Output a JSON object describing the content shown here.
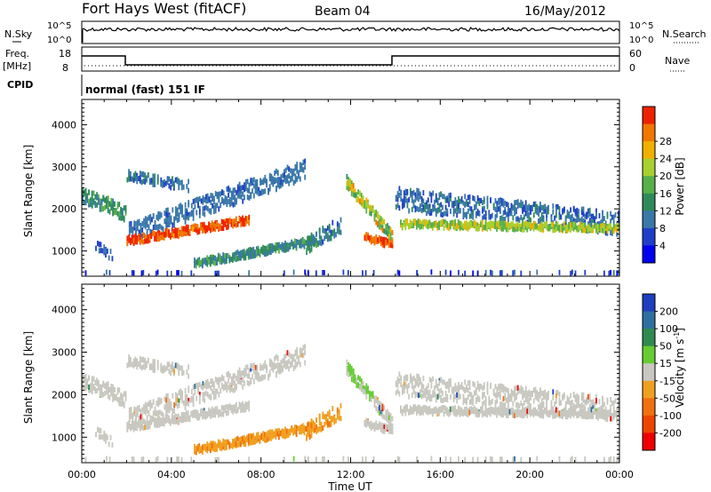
{
  "header": {
    "title": "Fort Hays West (fitACF)",
    "beam": "Beam 04",
    "date": "16/May/2012"
  },
  "top_panels": {
    "nsky_label": "N.Sky",
    "nsky_ticks": [
      "10^5",
      "10^0"
    ],
    "nsearch_label": "N.Search",
    "nsearch_ticks": [
      "10^5",
      "10^0"
    ],
    "freq_label_1": "Freq.",
    "freq_label_2": "[MHz]",
    "freq_ticks": [
      "18",
      "8"
    ],
    "nave_label": "Nave",
    "nave_ticks": [
      "60",
      "0"
    ],
    "cpid_label": "CPID",
    "cpid_text": "normal (fast) 151 IF"
  },
  "colors": {
    "power_scale": [
      "#0000ee",
      "#1f3fc8",
      "#3a78a8",
      "#2f8a5a",
      "#58b04a",
      "#a8d030",
      "#f0b000",
      "#f07800",
      "#ee2200"
    ],
    "velocity_scale": [
      "#1f3fbf",
      "#2f6fa0",
      "#2f8a50",
      "#66cc33",
      "#c8c8c0",
      "#f0a020",
      "#f07010",
      "#ee4400",
      "#ee0000"
    ]
  },
  "chart_data": [
    {
      "type": "heatmap",
      "name": "power",
      "xlabel": "",
      "ylabel": "Slant Range [km]",
      "xlim": [
        0,
        24
      ],
      "ylim": [
        400,
        4600
      ],
      "x_ticks": [
        "00:00",
        "04:00",
        "08:00",
        "12:00",
        "16:00",
        "20:00",
        "00:00"
      ],
      "y_ticks": [
        "1000",
        "2000",
        "3000",
        "4000"
      ],
      "colorbar_label": "Power [dB]",
      "colorbar_ticks": [
        "4",
        "8",
        "12",
        "16",
        "20",
        "24",
        "28"
      ],
      "colorbar_range": [
        0,
        30
      ]
    },
    {
      "type": "heatmap",
      "name": "velocity",
      "xlabel": "Time UT",
      "ylabel": "Slant Range [km]",
      "xlim": [
        0,
        24
      ],
      "ylim": [
        400,
        4600
      ],
      "x_ticks": [
        "00:00",
        "04:00",
        "08:00",
        "12:00",
        "16:00",
        "20:00",
        "00:00"
      ],
      "y_ticks": [
        "1000",
        "2000",
        "3000",
        "4000"
      ],
      "colorbar_label": "Velocity [m s",
      "colorbar_unit_sup": "-1",
      "colorbar_label_end": "]",
      "colorbar_ticks": [
        "200",
        "100",
        "50",
        "15",
        "-15",
        "-50",
        "-100",
        "-200"
      ]
    }
  ]
}
